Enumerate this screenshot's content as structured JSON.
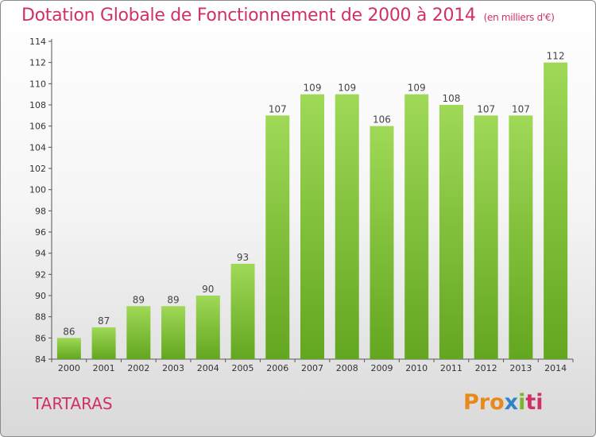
{
  "title": "Dotation Globale de Fonctionnement de 2000 à 2014",
  "title_unit": "(en milliers d'€)",
  "commune": "TARTARAS",
  "logo": {
    "p1": "Pro",
    "p2": "x",
    "p3": "i",
    "p4": "ti"
  },
  "colors": {
    "bar": "#7cc236",
    "bar_light": "#9fd957",
    "bar_dark": "#63a61f",
    "title": "#d0306a"
  },
  "chart_data": {
    "type": "bar",
    "title": "Dotation Globale de Fonctionnement de 2000 à 2014",
    "subtitle": "(en milliers d'€)",
    "xlabel": "",
    "ylabel": "",
    "ylim": [
      84,
      114
    ],
    "yticks": [
      84,
      86,
      88,
      90,
      92,
      94,
      96,
      98,
      100,
      102,
      104,
      106,
      108,
      110,
      112,
      114
    ],
    "categories": [
      "2000",
      "2001",
      "2002",
      "2003",
      "2004",
      "2005",
      "2006",
      "2007",
      "2008",
      "2009",
      "2010",
      "2011",
      "2012",
      "2013",
      "2014"
    ],
    "values": [
      86,
      87,
      89,
      89,
      90,
      93,
      107,
      109,
      109,
      106,
      109,
      108,
      107,
      107,
      112
    ],
    "grid": false,
    "legend": "none"
  }
}
